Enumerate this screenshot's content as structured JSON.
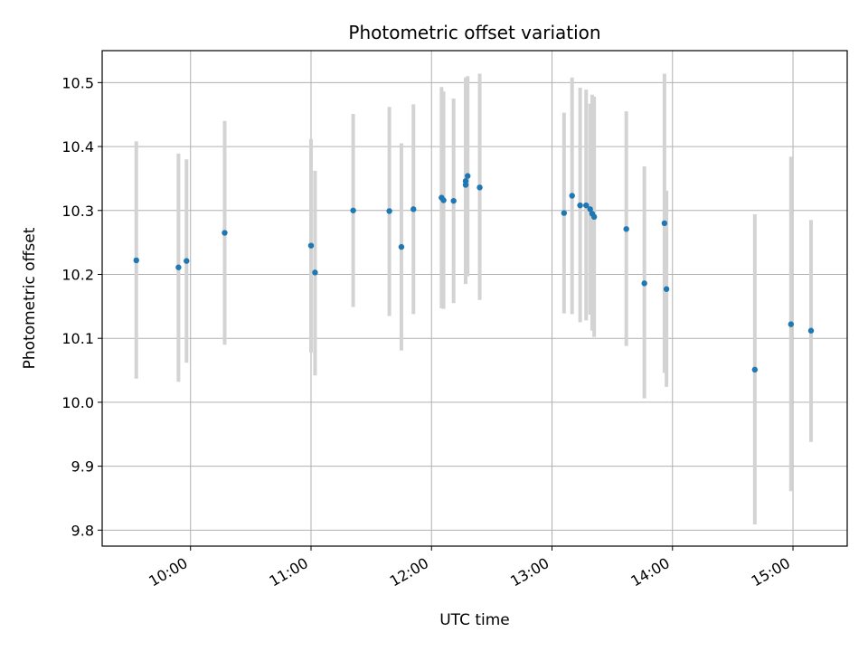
{
  "chart_data": {
    "type": "scatter",
    "title": "Photometric offset variation",
    "xlabel": "UTC time",
    "ylabel": "Photometric offset",
    "x_ticks": [
      "10:00",
      "11:00",
      "12:00",
      "13:00",
      "14:00",
      "15:00"
    ],
    "y_ticks": [
      "9.8",
      "9.9",
      "10.0",
      "10.1",
      "10.2",
      "10.3",
      "10.4",
      "10.5"
    ],
    "xlim": [
      "09:16",
      "15:27"
    ],
    "ylim": [
      9.775,
      10.55
    ],
    "grid": true,
    "colors": {
      "points": "#1f77b4",
      "errorbars": "#d3d3d3",
      "grid": "#b0b0b0"
    },
    "points": [
      {
        "x": "09:33",
        "y": 10.222,
        "y_low": 10.037,
        "y_high": 10.408
      },
      {
        "x": "09:54",
        "y": 10.211,
        "y_low": 10.032,
        "y_high": 10.389
      },
      {
        "x": "09:58",
        "y": 10.221,
        "y_low": 10.062,
        "y_high": 10.38
      },
      {
        "x": "10:17",
        "y": 10.265,
        "y_low": 10.09,
        "y_high": 10.44
      },
      {
        "x": "11:00",
        "y": 10.245,
        "y_low": 10.078,
        "y_high": 10.412
      },
      {
        "x": "11:02",
        "y": 10.203,
        "y_low": 10.042,
        "y_high": 10.362
      },
      {
        "x": "11:21",
        "y": 10.3,
        "y_low": 10.149,
        "y_high": 10.451
      },
      {
        "x": "11:39",
        "y": 10.299,
        "y_low": 10.135,
        "y_high": 10.462
      },
      {
        "x": "11:45",
        "y": 10.243,
        "y_low": 10.081,
        "y_high": 10.405
      },
      {
        "x": "11:51",
        "y": 10.302,
        "y_low": 10.138,
        "y_high": 10.466
      },
      {
        "x": "12:05",
        "y": 10.32,
        "y_low": 10.147,
        "y_high": 10.493
      },
      {
        "x": "12:06",
        "y": 10.316,
        "y_low": 10.146,
        "y_high": 10.486
      },
      {
        "x": "12:11",
        "y": 10.315,
        "y_low": 10.155,
        "y_high": 10.475
      },
      {
        "x": "12:17",
        "y": 10.346,
        "y_low": 10.185,
        "y_high": 10.508
      },
      {
        "x": "12:17",
        "y": 10.34,
        "y_low": 10.186,
        "y_high": 10.503
      },
      {
        "x": "12:18",
        "y": 10.354,
        "y_low": 10.197,
        "y_high": 10.51
      },
      {
        "x": "12:24",
        "y": 10.336,
        "y_low": 10.16,
        "y_high": 10.514
      },
      {
        "x": "13:06",
        "y": 10.296,
        "y_low": 10.139,
        "y_high": 10.453
      },
      {
        "x": "13:10",
        "y": 10.323,
        "y_low": 10.138,
        "y_high": 10.508
      },
      {
        "x": "13:14",
        "y": 10.308,
        "y_low": 10.125,
        "y_high": 10.492
      },
      {
        "x": "13:17",
        "y": 10.308,
        "y_low": 10.128,
        "y_high": 10.489
      },
      {
        "x": "13:19",
        "y": 10.302,
        "y_low": 10.137,
        "y_high": 10.467
      },
      {
        "x": "13:20",
        "y": 10.295,
        "y_low": 10.112,
        "y_high": 10.481
      },
      {
        "x": "13:21",
        "y": 10.29,
        "y_low": 10.102,
        "y_high": 10.478
      },
      {
        "x": "13:37",
        "y": 10.271,
        "y_low": 10.088,
        "y_high": 10.455
      },
      {
        "x": "13:46",
        "y": 10.186,
        "y_low": 10.006,
        "y_high": 10.369
      },
      {
        "x": "13:56",
        "y": 10.28,
        "y_low": 10.046,
        "y_high": 10.514
      },
      {
        "x": "13:57",
        "y": 10.177,
        "y_low": 10.024,
        "y_high": 10.331
      },
      {
        "x": "14:41",
        "y": 10.051,
        "y_low": 9.809,
        "y_high": 10.294
      },
      {
        "x": "14:59",
        "y": 10.122,
        "y_low": 9.861,
        "y_high": 10.384
      },
      {
        "x": "15:09",
        "y": 10.112,
        "y_low": 9.938,
        "y_high": 10.285
      }
    ]
  }
}
